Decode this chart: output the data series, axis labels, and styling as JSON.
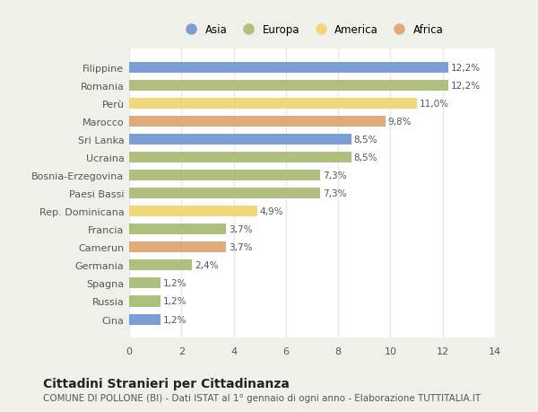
{
  "countries": [
    "Filippine",
    "Romania",
    "Perù",
    "Marocco",
    "Sri Lanka",
    "Ucraina",
    "Bosnia-Erzegovina",
    "Paesi Bassi",
    "Rep. Dominicana",
    "Francia",
    "Camerun",
    "Germania",
    "Spagna",
    "Russia",
    "Cina"
  ],
  "values": [
    12.2,
    12.2,
    11.0,
    9.8,
    8.5,
    8.5,
    7.3,
    7.3,
    4.9,
    3.7,
    3.7,
    2.4,
    1.2,
    1.2,
    1.2
  ],
  "labels": [
    "12,2%",
    "12,2%",
    "11,0%",
    "9,8%",
    "8,5%",
    "8,5%",
    "7,3%",
    "7,3%",
    "4,9%",
    "3,7%",
    "3,7%",
    "2,4%",
    "1,2%",
    "1,2%",
    "1,2%"
  ],
  "continents": [
    "Asia",
    "Europa",
    "America",
    "Africa",
    "Asia",
    "Europa",
    "Europa",
    "Europa",
    "America",
    "Europa",
    "Africa",
    "Europa",
    "Europa",
    "Europa",
    "Asia"
  ],
  "colors": {
    "Asia": "#7b9fd4",
    "Europa": "#afc07e",
    "America": "#f0d87a",
    "Africa": "#e0aa7a"
  },
  "xlim": [
    0,
    14
  ],
  "xticks": [
    0,
    2,
    4,
    6,
    8,
    10,
    12,
    14
  ],
  "title": "Cittadini Stranieri per Cittadinanza",
  "subtitle": "COMUNE DI POLLONE (BI) - Dati ISTAT al 1° gennaio di ogni anno - Elaborazione TUTTITALIA.IT",
  "page_bg": "#f0f0eb",
  "plot_bg": "#ffffff",
  "grid_color": "#e8e8e8",
  "bar_height": 0.6,
  "title_fontsize": 10,
  "subtitle_fontsize": 7.5,
  "label_fontsize": 7.5,
  "tick_fontsize": 8,
  "legend_fontsize": 8.5
}
